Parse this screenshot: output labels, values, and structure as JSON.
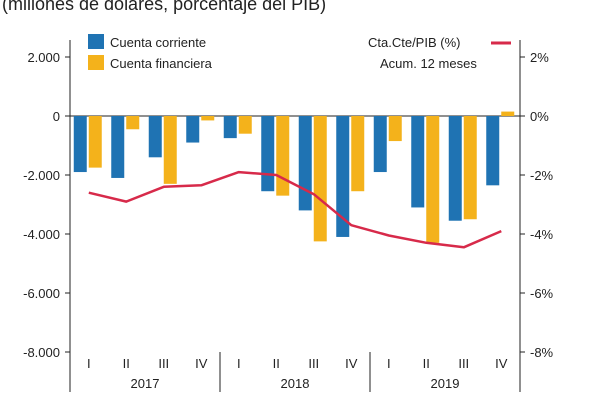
{
  "chart_data": {
    "type": "bar",
    "subtitle": "(millones de dólares, porcentaje del PIB)",
    "categories": [
      "I",
      "II",
      "III",
      "IV",
      "I",
      "II",
      "III",
      "IV",
      "I",
      "II",
      "III",
      "IV"
    ],
    "year_groups": [
      {
        "label": "2017",
        "quarters": [
          "I",
          "II",
          "III",
          "IV"
        ]
      },
      {
        "label": "2018",
        "quarters": [
          "I",
          "II",
          "III",
          "IV"
        ]
      },
      {
        "label": "2019",
        "quarters": [
          "I",
          "II",
          "III",
          "IV"
        ]
      }
    ],
    "series": [
      {
        "name": "Cuenta corriente",
        "axis": "left",
        "color": "#1f73b3",
        "values": [
          -1900,
          -2100,
          -1400,
          -900,
          -750,
          -2550,
          -3200,
          -4100,
          -1900,
          -3100,
          -3550,
          -2350
        ]
      },
      {
        "name": "Cuenta financiera",
        "axis": "left",
        "color": "#f4b21b",
        "values": [
          -1750,
          -450,
          -2300,
          -150,
          -600,
          -2700,
          -4250,
          -2550,
          -850,
          -4300,
          -3500,
          150
        ]
      },
      {
        "name": "Cta.Cte/PIB (%)",
        "legend_note": "Acum. 12 meses",
        "axis": "right",
        "type": "line",
        "color": "#d72a4a",
        "values": [
          -2.6,
          -2.9,
          -2.4,
          -2.35,
          -1.9,
          -2.0,
          -2.65,
          -3.7,
          -4.05,
          -4.3,
          -4.45,
          -3.9
        ]
      }
    ],
    "y_left": {
      "ylim": [
        -8000,
        2000
      ],
      "ticks": [
        2000,
        0,
        -2000,
        -4000,
        -6000,
        -8000
      ],
      "tick_labels": [
        "2.000",
        "0",
        "-2.000",
        "-4.000",
        "-6.000",
        "-8.000"
      ]
    },
    "y_right": {
      "ylim": [
        -8,
        2
      ],
      "ticks": [
        2,
        0,
        -2,
        -4,
        -6,
        -8
      ],
      "tick_labels": [
        "2%",
        "0%",
        "-2%",
        "-4%",
        "-6%",
        "-8%"
      ]
    },
    "grid": false,
    "legend": [
      {
        "label": "Cuenta corriente",
        "color": "#1f73b3",
        "placement": "top-left"
      },
      {
        "label": "Cuenta financiera",
        "color": "#f4b21b",
        "placement": "top-left"
      },
      {
        "label": "Cta.Cte/PIB (%)",
        "label2": "Acum. 12 meses",
        "color": "#d72a4a",
        "placement": "top-right"
      }
    ]
  }
}
